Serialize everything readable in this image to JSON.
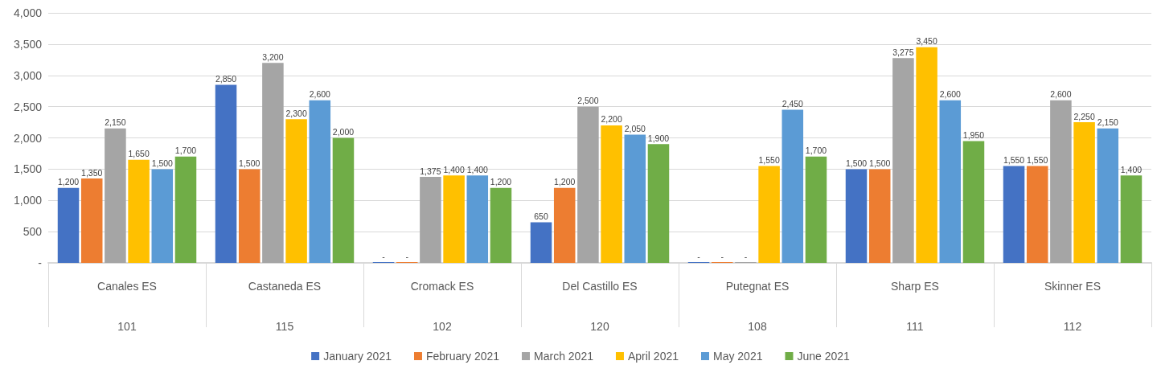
{
  "chart_data": {
    "type": "bar",
    "categories": [
      "Canales ES",
      "Castaneda ES",
      "Cromack ES",
      "Del Castillo ES",
      "Putegnat ES",
      "Sharp ES",
      "Skinner ES"
    ],
    "annotations": [
      "101",
      "115",
      "102",
      "120",
      "108",
      "111",
      "112"
    ],
    "series": [
      {
        "name": "January 2021",
        "color": "#4472c4",
        "values": [
          1200,
          2850,
          0,
          650,
          0,
          1500,
          1550
        ],
        "value_labels": [
          "1,200",
          "2,850",
          "-",
          "650",
          "-",
          "1,500",
          "1,550"
        ]
      },
      {
        "name": "February 2021",
        "color": "#ed7d31",
        "values": [
          1350,
          1500,
          0,
          1200,
          0,
          1500,
          1550
        ],
        "value_labels": [
          "1,350",
          "1,500",
          "-",
          "1,200",
          "-",
          "1,500",
          "1,550"
        ]
      },
      {
        "name": "March 2021",
        "color": "#a5a5a5",
        "values": [
          2150,
          3200,
          1375,
          2500,
          0,
          3275,
          2600
        ],
        "value_labels": [
          "2,150",
          "3,200",
          "1,375",
          "2,500",
          "-",
          "3,275",
          "2,600"
        ]
      },
      {
        "name": "April 2021",
        "color": "#ffc000",
        "values": [
          1650,
          2300,
          1400,
          2200,
          1550,
          3450,
          2250
        ],
        "value_labels": [
          "1,650",
          "2,300",
          "1,400",
          "2,200",
          "1,550",
          "3,450",
          "2,250"
        ]
      },
      {
        "name": "May 2021",
        "color": "#5b9bd5",
        "values": [
          1500,
          2600,
          1400,
          2050,
          2450,
          2600,
          2150
        ],
        "value_labels": [
          "1,500",
          "2,600",
          "1,400",
          "2,050",
          "2,450",
          "2,600",
          "2,150"
        ]
      },
      {
        "name": "June 2021",
        "color": "#70ad47",
        "values": [
          1700,
          2000,
          1200,
          1900,
          1700,
          1950,
          1400
        ],
        "value_labels": [
          "1,700",
          "2,000",
          "1,200",
          "1,900",
          "1,700",
          "1,950",
          "1,400"
        ]
      }
    ],
    "ylim": [
      0,
      4000
    ],
    "yticks": [
      {
        "value": 0,
        "label": "-"
      },
      500,
      {
        "value": 1000,
        "label": "1,000"
      },
      {
        "value": 1500,
        "label": "1,500"
      },
      {
        "value": 2000,
        "label": "2,000"
      },
      {
        "value": 2500,
        "label": "2,500"
      },
      {
        "value": 3000,
        "label": "3,000"
      },
      {
        "value": 3500,
        "label": "3,500"
      },
      {
        "value": 4000,
        "label": "4,000"
      }
    ],
    "grid": "y",
    "legend": "bottom"
  }
}
